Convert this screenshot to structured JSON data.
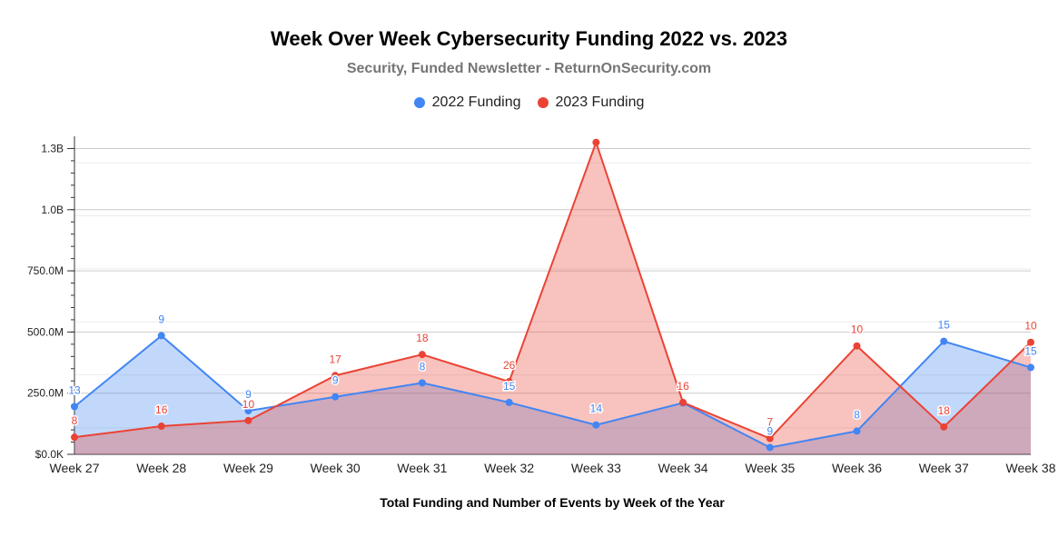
{
  "chart_data": {
    "type": "area",
    "title": "Week Over Week Cybersecurity Funding 2022 vs. 2023",
    "subtitle": "Security, Funded Newsletter - ReturnOnSecurity.com",
    "xlabel": "Total Funding and Number of Events by Week of the Year",
    "ylabel": "",
    "categories": [
      "Week 27",
      "Week 28",
      "Week 29",
      "Week 30",
      "Week 31",
      "Week 32",
      "Week 33",
      "Week 34",
      "Week 35",
      "Week 36",
      "Week 37",
      "Week 38"
    ],
    "ylim": [
      0,
      1300000000
    ],
    "yticks": [
      {
        "value": 0,
        "label": "$0.0K"
      },
      {
        "value": 250000000,
        "label": "250.0M"
      },
      {
        "value": 500000000,
        "label": "500.0M"
      },
      {
        "value": 750000000,
        "label": "750.0M"
      },
      {
        "value": 1000000000,
        "label": "1.0B"
      },
      {
        "value": 1250000000,
        "label": "1.3B"
      }
    ],
    "grid": true,
    "legend_position": "top",
    "series": [
      {
        "name": "2022 Funding",
        "color": "#4285f4",
        "fill": "#aecbfa",
        "values": [
          195000000,
          485000000,
          178000000,
          235000000,
          292000000,
          212000000,
          120000000,
          210000000,
          28000000,
          95000000,
          462000000,
          355000000
        ],
        "labels": [
          "13",
          "9",
          "9",
          "9",
          "8",
          "15",
          "14",
          "",
          "9",
          "8",
          "15",
          "15"
        ]
      },
      {
        "name": "2023 Funding",
        "color": "#ea4335",
        "fill": "#f5b7b1",
        "values": [
          70000000,
          115000000,
          138000000,
          322000000,
          408000000,
          297000000,
          1275000000,
          212000000,
          65000000,
          443000000,
          112000000,
          458000000
        ],
        "labels": [
          "8",
          "16",
          "10",
          "17",
          "18",
          "26",
          "",
          "16",
          "7",
          "10",
          "18",
          "10"
        ]
      }
    ]
  }
}
